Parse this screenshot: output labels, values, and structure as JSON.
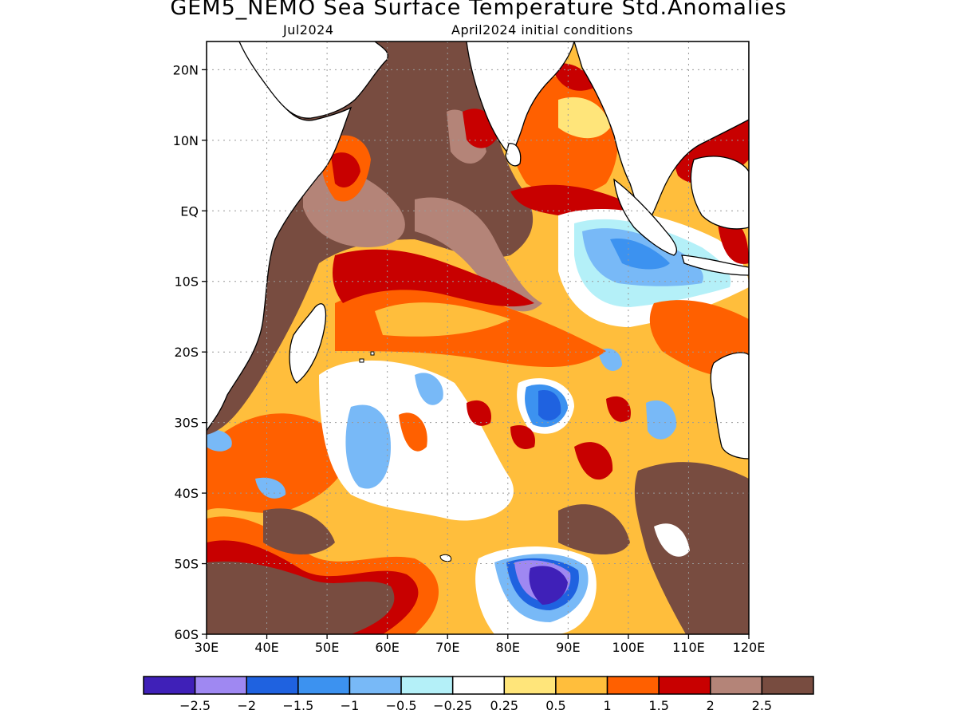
{
  "title": "GEM5_NEMO Sea Surface Temperature Std.Anomalies",
  "subtitle_left": "Jul2024",
  "subtitle_right": "April2024 initial conditions",
  "map": {
    "lon_range": [
      30,
      120
    ],
    "lat_range": [
      -60,
      24
    ],
    "lat_ticks": [
      "20N",
      "10N",
      "EQ",
      "10S",
      "20S",
      "30S",
      "40S",
      "50S",
      "60S"
    ],
    "lon_ticks": [
      "30E",
      "40E",
      "50E",
      "60E",
      "70E",
      "80E",
      "90E",
      "100E",
      "110E",
      "120E"
    ],
    "gridlines": "dotted"
  },
  "colorbar": {
    "colors": [
      "#3f20b8",
      "#9f88f2",
      "#1f62e0",
      "#3c92f0",
      "#78b9f7",
      "#b4f0f8",
      "#ffffff",
      "#ffe57a",
      "#ffbe3c",
      "#ff6000",
      "#c80000",
      "#b48478",
      "#784c40"
    ],
    "labels": [
      "−2.5",
      "−2",
      "−1.5",
      "−1",
      "−0.5",
      "−0.25",
      "0.25",
      "0.5",
      "1",
      "1.5",
      "2",
      "2.5"
    ]
  },
  "colors": {
    "land": "#ffffff",
    "coastline": "#000000",
    "background": "#ffffff"
  }
}
